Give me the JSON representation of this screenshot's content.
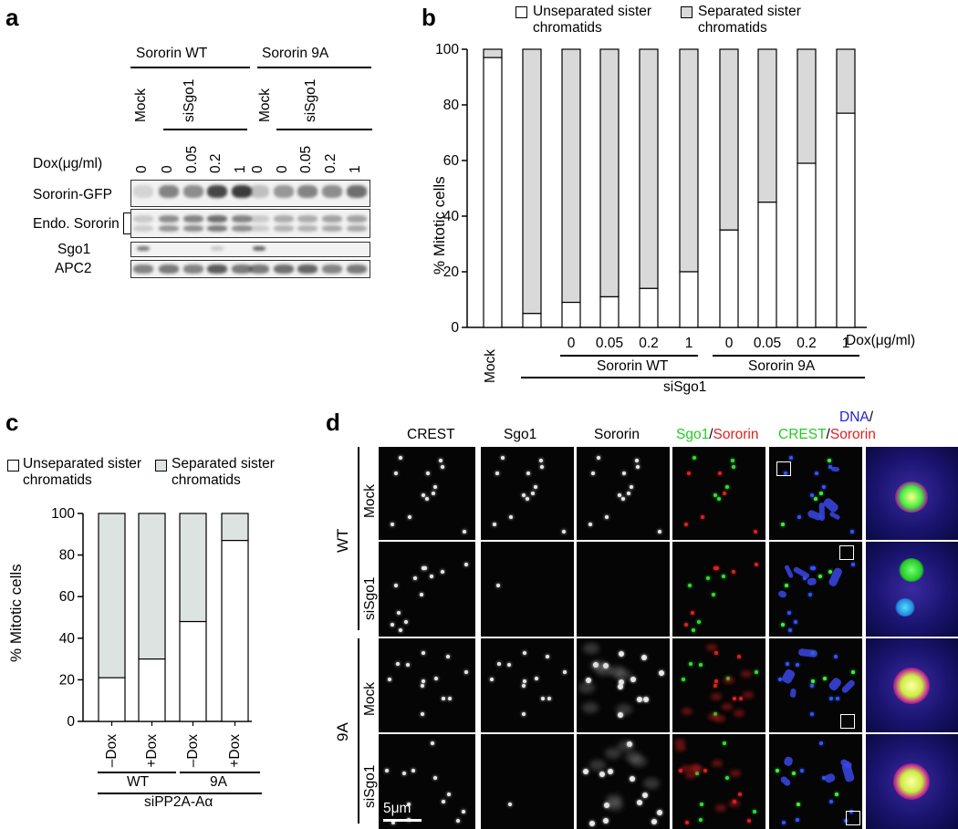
{
  "panels": {
    "a": "a",
    "b": "b",
    "c": "c",
    "d": "d"
  },
  "panel_a": {
    "groups": [
      "Sororin WT",
      "Sororin 9A"
    ],
    "mock": "Mock",
    "sisgo": "siSgo1",
    "dox_label": "Dox(μg/ml)",
    "dox_values": [
      "0",
      "0",
      "0.05",
      "0.2",
      "1",
      "0",
      "0",
      "0.05",
      "0.2",
      "1"
    ],
    "rows": [
      "Sororin-GFP",
      "Endo. Sororin",
      "Sgo1",
      "APC2"
    ]
  },
  "panel_b": {
    "legend_unsep": "Unseparated sister chromatids",
    "legend_sep": "Separated sister chromatids",
    "legend_unsep_1": "Unseparated sister",
    "legend_unsep_2": "chromatids",
    "legend_sep_1": "Separated sister",
    "legend_sep_2": "chromatids",
    "ylabel": "% Mitotic cells",
    "dox_label": "Dox(μg/ml)",
    "mock": "Mock",
    "group_wt": "Sororin WT",
    "group_9a": "Sororin 9A",
    "sisgo": "siSgo1",
    "yticks": [
      "0",
      "20",
      "40",
      "60",
      "80",
      "100"
    ]
  },
  "panel_c": {
    "legend_unsep_1": "Unseparated sister",
    "legend_unsep_2": "chromatids",
    "legend_sep_1": "Separated sister",
    "legend_sep_2": "chromatids",
    "ylabel": "% Mitotic cells",
    "group_wt": "WT",
    "group_9a": "9A",
    "sipp": "siPP2A-Aα",
    "yticks": [
      "0",
      "20",
      "40",
      "60",
      "80",
      "100"
    ]
  },
  "panel_d": {
    "columns": [
      "CREST",
      "Sgo1",
      "Sororin"
    ],
    "merge1_a": "Sgo1",
    "merge1_sep": "/",
    "merge1_b": "Sororin",
    "merge2_a": "DNA",
    "merge2_sep": "/",
    "merge2_b": "CREST",
    "merge2_c": "/",
    "merge2_d": "Sororin",
    "row_labels": [
      "Mock",
      "siSgo1",
      "Mock",
      "siSgo1"
    ],
    "group_wt": "WT",
    "group_9a": "9A",
    "scale": "5μm",
    "colors": {
      "green": "#22cc22",
      "red": "#e02020",
      "blue": "#2020e0"
    }
  },
  "chart_data": [
    {
      "type": "bar",
      "stacked": true,
      "categories": [
        "Mock",
        "siSgo1",
        "0",
        "0.05",
        "0.2",
        "1",
        "0",
        "0.05",
        "0.2",
        "1"
      ],
      "series": [
        {
          "name": "Unseparated sister chromatids",
          "values": [
            97,
            5,
            9,
            11,
            14,
            20,
            35,
            45,
            59,
            77
          ]
        },
        {
          "name": "Separated sister chromatids",
          "values": [
            3,
            95,
            91,
            89,
            86,
            80,
            65,
            55,
            41,
            23
          ]
        }
      ],
      "ylabel": "% Mitotic cells",
      "ylim": [
        0,
        100
      ],
      "colors": {
        "unsep": "#ffffff",
        "sep": "#d9d9d9"
      }
    },
    {
      "type": "bar",
      "stacked": true,
      "categories": [
        "–Dox",
        "+Dox",
        "–Dox",
        "+Dox"
      ],
      "series": [
        {
          "name": "Unseparated sister chromatids",
          "values": [
            21,
            30,
            48,
            87
          ]
        },
        {
          "name": "Separated sister chromatids",
          "values": [
            79,
            70,
            52,
            13
          ]
        }
      ],
      "ylabel": "% Mitotic cells",
      "ylim": [
        0,
        100
      ],
      "colors": {
        "unsep": "#ffffff",
        "sep": "#dde3e0"
      }
    }
  ]
}
